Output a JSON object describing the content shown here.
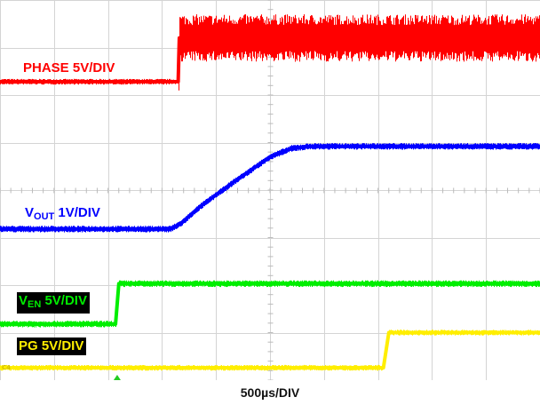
{
  "chart_data": {
    "type": "line",
    "title": "",
    "xlabel": "500µs/DIV",
    "grid": true,
    "divisions": {
      "x": 10,
      "y": 8
    },
    "x_unit": "div",
    "xlim": [
      0,
      10
    ],
    "ylim": [
      0,
      8
    ],
    "series": [
      {
        "name": "PHASE 5V/DIV",
        "label_main": "PHASE 5V/DIV",
        "label_sub": "",
        "label_tail": "",
        "channel_marker": "C1",
        "color": "#ff0000",
        "points": [
          [
            0,
            6.28
          ],
          [
            3.21,
            6.28
          ],
          [
            3.3,
            6.28
          ],
          [
            3.32,
            7.2
          ],
          [
            10,
            7.2
          ]
        ],
        "noise_band": [
          [
            0,
            3.25,
            0.06
          ],
          [
            3.3,
            10,
            0.5
          ]
        ]
      },
      {
        "name": "VOUT 1V/DIV",
        "label_main": "V",
        "label_sub": "OUT",
        "label_tail": " 1V/DIV",
        "channel_marker": "C2",
        "color": "#0000ff",
        "points": [
          [
            0,
            3.18
          ],
          [
            3.15,
            3.18
          ],
          [
            3.35,
            3.3
          ],
          [
            3.7,
            3.65
          ],
          [
            4.3,
            4.15
          ],
          [
            5.0,
            4.7
          ],
          [
            5.4,
            4.88
          ],
          [
            5.75,
            4.92
          ],
          [
            10,
            4.92
          ]
        ],
        "noise_band": [
          [
            0,
            10,
            0.07
          ]
        ]
      },
      {
        "name": "VEN 5V/DIV",
        "label_main": "V",
        "label_sub": "EN",
        "label_tail": " 5V/DIV",
        "channel_marker": "C3",
        "color": "#00ee00",
        "points": [
          [
            0,
            1.18
          ],
          [
            2.14,
            1.18
          ],
          [
            2.2,
            2.03
          ],
          [
            10,
            2.03
          ]
        ],
        "noise_band": [
          [
            0,
            10,
            0.07
          ]
        ]
      },
      {
        "name": "PG 5V/DIV",
        "label_main": "PG 5V/DIV",
        "label_sub": "",
        "label_tail": "",
        "channel_marker": "C4",
        "color": "#ffee00",
        "points": [
          [
            0,
            0.26
          ],
          [
            7.1,
            0.26
          ],
          [
            7.2,
            1.0
          ],
          [
            10,
            1.0
          ]
        ],
        "noise_band": [
          [
            0,
            10,
            0.06
          ]
        ]
      }
    ],
    "trigger_marker": {
      "x": 2.17,
      "color": "#22cc22"
    }
  }
}
